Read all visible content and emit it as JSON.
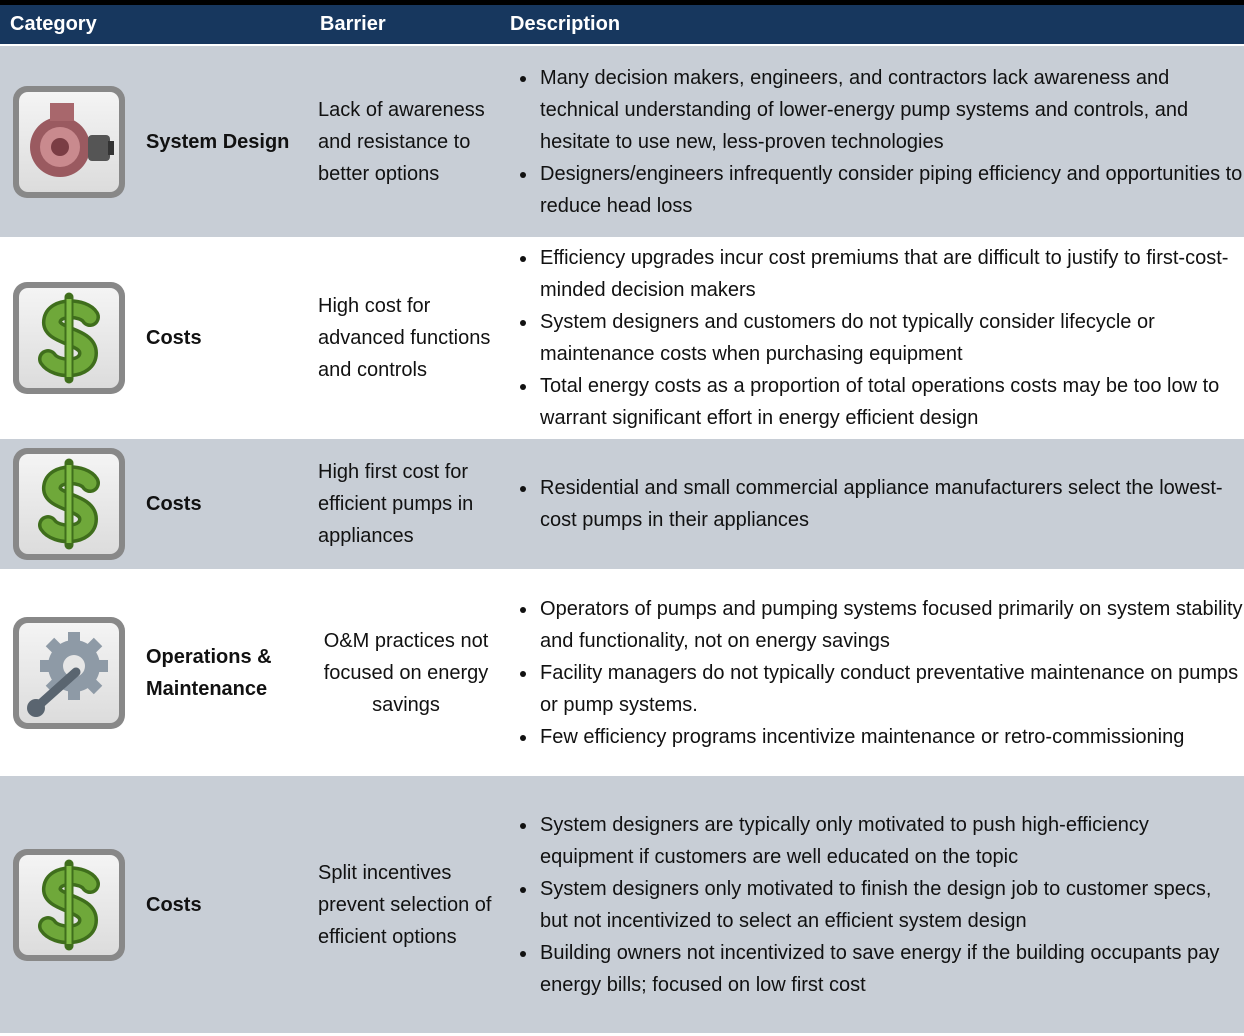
{
  "table": {
    "header": [
      "Category",
      "Barrier",
      "Description"
    ],
    "rows": [
      {
        "category": "System Design",
        "barrier": "Lack of awareness and resistance to better options",
        "description": [
          "Many decision makers, engineers, and contractors lack awareness and technical understanding of lower-energy pump systems and controls, and  hesitate to  use new, less-proven technologies",
          "Designers/engineers infrequently consider piping efficiency and opportunities to reduce head loss"
        ]
      },
      {
        "category": "Costs",
        "barrier": "High cost for advanced functions and controls",
        "description": [
          "Efficiency upgrades  incur cost premiums that are difficult to justify to first-cost-minded decision makers",
          "System designers and customers do not typically consider lifecycle or maintenance costs when purchasing equipment",
          "Total energy costs as a proportion of total operations costs may be too low to warrant significant effort in energy efficient design"
        ]
      },
      {
        "category": "Costs",
        "barrier": "High first cost for efficient pumps in appliances",
        "description": [
          "Residential and small commercial appliance manufacturers select the lowest-cost pumps in their appliances"
        ]
      },
      {
        "category": "Operations & Maintenance",
        "barrier": "O&M practices not focused on energy savings",
        "description": [
          "Operators of pumps and pumping systems focused primarily on system stability and functionality, not on energy savings",
          "Facility managers do not typically conduct preventative maintenance on pumps or pump systems.",
          "Few efficiency programs incentivize maintenance or retro-commissioning"
        ]
      },
      {
        "category": "Costs",
        "barrier": "Split incentives prevent selection of efficient options",
        "description": [
          "System designers are typically only motivated to push high-efficiency equipment if customers are well educated on the topic",
          "System designers only motivated to finish the design job to customer specs, but not incentivized to select an efficient system design",
          "Building owners not incentivized to save energy if the building occupants pay energy bills; focused on low first cost"
        ]
      }
    ]
  }
}
